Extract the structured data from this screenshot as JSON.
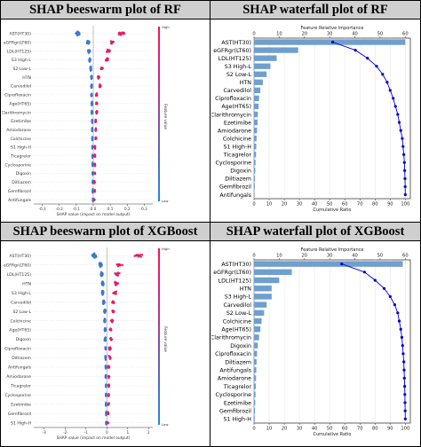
{
  "panels": {
    "tl_title": "SHAP beeswarm plot of RF",
    "tr_title": "SHAP waterfall plot of RF",
    "bl_title": "SHAP beeswarm plot of XGBoost",
    "br_title": "SHAP waterfall plot of XGBoost"
  },
  "colors": {
    "high": "#ff0d57",
    "low": "#1e88e5",
    "bar": "#6f9fcf",
    "line": "#0000cc"
  },
  "chart_data": [
    {
      "type": "scatter",
      "title": "SHAP beeswarm plot of RF",
      "xlabel": "SHAP value (impact on model output)",
      "ylabel": "Feature value",
      "colorbar_high": "High",
      "colorbar_low": "Low",
      "xlim": [
        -0.35,
        0.35
      ],
      "xticks": [
        "-0.3",
        "-0.2",
        "-0.1",
        "0.0",
        "0.1",
        "0.2",
        "0.3"
      ],
      "features": [
        "AST(HT30)",
        "eGFRgr(LT60)",
        "LDL(HT125)",
        "S3 High-L",
        "S2 Low-L",
        "HTN",
        "Carvedilol",
        "Ciprofloxacin",
        "Age(HT65)",
        "Clarithromycin",
        "Ezetimibe",
        "Amiodarone",
        "Colchicine",
        "S1 High-H",
        "Ticagrelor",
        "Cyclosporine",
        "Digoxin",
        "Diltiazem",
        "Gemfibrozil",
        "Antifungals"
      ],
      "low_center": [
        -0.09,
        -0.03,
        -0.025,
        -0.02,
        -0.015,
        -0.01,
        -0.01,
        -0.01,
        -0.008,
        -0.008,
        -0.006,
        -0.006,
        -0.005,
        -0.005,
        -0.004,
        -0.004,
        -0.003,
        -0.003,
        -0.003,
        -0.002
      ],
      "high_center": [
        0.17,
        0.11,
        0.09,
        0.08,
        0.05,
        0.03,
        0.04,
        0.02,
        0.02,
        0.02,
        0.015,
        0.015,
        0.015,
        0.01,
        0.01,
        0.01,
        0.01,
        0.008,
        0.008,
        0.006
      ],
      "spread": [
        0.06,
        0.035,
        0.03,
        0.025,
        0.02,
        0.015,
        0.012,
        0.01,
        0.01,
        0.01,
        0.008,
        0.008,
        0.008,
        0.006,
        0.006,
        0.006,
        0.005,
        0.005,
        0.005,
        0.004
      ]
    },
    {
      "type": "bar",
      "title": "SHAP waterfall plot of RF",
      "xlabel_top": "Feature Relative Importance",
      "xlabel_bottom": "Cumulative Ratio",
      "top_ticks": [
        "0",
        "10",
        "20",
        "30",
        "40",
        "50",
        "60"
      ],
      "bottom_ticks": [
        "0",
        "10",
        "20",
        "30",
        "40",
        "50",
        "60",
        "70",
        "80",
        "90",
        "100"
      ],
      "xlim_top": [
        0,
        62
      ],
      "xlim_bottom": [
        0,
        103.33
      ],
      "categories": [
        "AST(HT30)",
        "eGFRgr(LT60)",
        "LDL(HT125)",
        "S3 High-L",
        "S2 Low-L",
        "HTN",
        "Carvedilol",
        "Ciprofloxacin",
        "Age(HT65)",
        "Clarithromycin",
        "Ezetimibe",
        "Amiodarone",
        "Colchicine",
        "S1 High-H",
        "Ticagrelor",
        "Cyclosporine",
        "Digoxin",
        "Diltiazem",
        "Gemfibrozil",
        "Antifungals"
      ],
      "values": [
        60,
        17.5,
        9,
        6.5,
        5,
        3.5,
        2.5,
        2,
        1.8,
        1.5,
        1.4,
        1.2,
        1,
        0.9,
        0.8,
        0.6,
        0.5,
        0.4,
        0.3,
        0.2
      ],
      "cumulative": [
        52,
        67,
        75,
        81,
        85,
        88,
        90,
        92,
        93.5,
        95,
        96,
        97,
        98,
        98.5,
        99,
        99.4,
        99.6,
        99.8,
        99.9,
        100
      ]
    },
    {
      "type": "scatter",
      "title": "SHAP beeswarm plot of XGBoost",
      "xlabel": "SHAP value (impact on model output)",
      "ylabel": "Feature value",
      "colorbar_high": "High",
      "colorbar_low": "Low",
      "xlim": [
        -3.5,
        2.2
      ],
      "xticks": [
        "-3",
        "-2",
        "-1",
        "0",
        "1",
        "2"
      ],
      "features": [
        "AST(HT30)",
        "eGFRgr(LT60)",
        "LDL(HT125)",
        "HTN",
        "S3 High-L",
        "Carvedilol",
        "S2 Low-L",
        "Colchicine",
        "Age(HT65)",
        "Digoxin",
        "Ciprofloxacin",
        "Diltiazem",
        "Antifungals",
        "Amiodarone",
        "Ticagrelor",
        "Cyclosporine",
        "Ezetimibe",
        "Gemfibrozil",
        "S1 High-H"
      ],
      "low_center": [
        -0.6,
        -0.3,
        -0.25,
        -0.2,
        -0.2,
        -0.15,
        -0.1,
        -0.1,
        -0.08,
        -0.08,
        -0.06,
        -0.06,
        -0.05,
        -0.05,
        -0.04,
        -0.04,
        -0.04,
        -0.03,
        -0.03
      ],
      "high_center": [
        1.5,
        0.6,
        0.5,
        0.45,
        0.4,
        0.3,
        0.3,
        0.25,
        0.2,
        0.2,
        0.15,
        0.15,
        0.1,
        0.1,
        0.1,
        0.08,
        0.08,
        0.06,
        0.05
      ],
      "spread": [
        0.5,
        0.35,
        0.3,
        0.25,
        0.25,
        0.2,
        0.2,
        0.15,
        0.15,
        0.15,
        0.12,
        0.12,
        0.1,
        0.1,
        0.08,
        0.08,
        0.08,
        0.06,
        0.06
      ]
    },
    {
      "type": "bar",
      "title": "SHAP waterfall plot of XGBoost",
      "xlabel_top": "Feature Relative Importance",
      "xlabel_bottom": "Cumulative Ratio",
      "top_ticks": [
        "0",
        "10",
        "20",
        "30",
        "40",
        "50",
        "60"
      ],
      "bottom_ticks": [
        "0",
        "10",
        "20",
        "30",
        "40",
        "50",
        "60",
        "70",
        "80",
        "90",
        "100"
      ],
      "xlim_top": [
        0,
        62
      ],
      "xlim_bottom": [
        0,
        103.33
      ],
      "categories": [
        "AST(HT30)",
        "eGFRgr(LT60)",
        "LDL(HT125)",
        "HTN",
        "S3 High-L",
        "Carvedilol",
        "S2 Low-L",
        "Colchicine",
        "Age(HT65)",
        "Clarithromycin",
        "Digoxin",
        "Ciprofloxacin",
        "Diltiazem",
        "Antifungals",
        "Amiodarone",
        "Ticagrelor",
        "Cyclosporine",
        "Ezetimibe",
        "Gemfibrozil",
        "S1 High-H"
      ],
      "values": [
        59,
        15,
        10,
        7,
        7,
        5,
        4,
        3,
        2.5,
        2,
        1.5,
        1.2,
        1,
        0.9,
        0.8,
        0.7,
        0.6,
        0.5,
        0.4,
        0.3
      ],
      "cumulative": [
        58,
        73,
        80,
        86,
        90,
        93,
        95,
        96,
        97,
        97.7,
        98.2,
        98.6,
        99,
        99.2,
        99.4,
        99.6,
        99.7,
        99.8,
        99.9,
        100
      ]
    }
  ]
}
